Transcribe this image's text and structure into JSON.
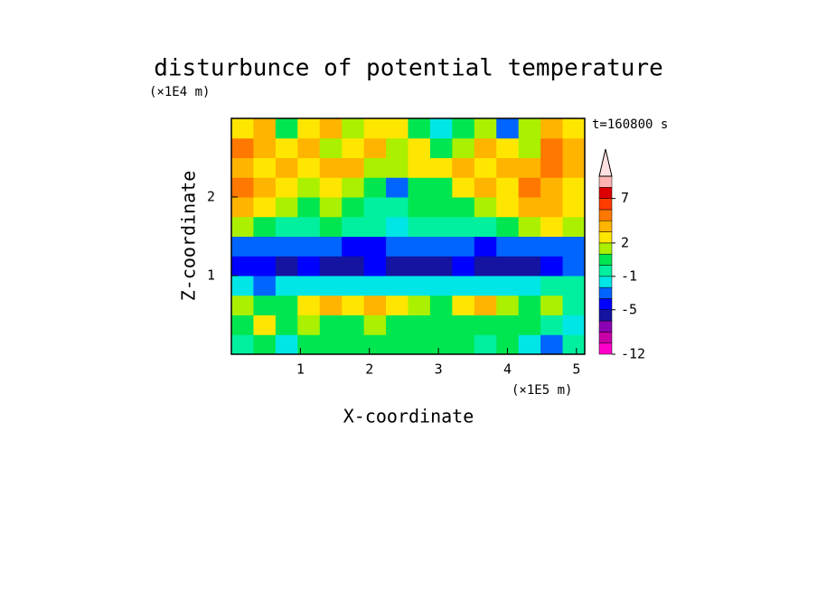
{
  "chart_data": {
    "type": "contour",
    "title": "disturbunce of potential temperature",
    "x_label": "X-coordinate",
    "y_label": "Z-coordinate",
    "x_unit": "(×1E5 m)",
    "y_unit": "(×1E4 m)",
    "annotation": "t=160800 s",
    "xlim": [
      0,
      5.12
    ],
    "ylim": [
      0,
      3
    ],
    "xticks": [
      1,
      2,
      3,
      4,
      5
    ],
    "yticks": [
      1,
      2
    ],
    "x": [
      0.16,
      0.48,
      0.8,
      1.12,
      1.44,
      1.76,
      2.08,
      2.4,
      2.72,
      3.04,
      3.36,
      3.68,
      4.0,
      4.32,
      4.64,
      4.96
    ],
    "y": [
      0.125,
      0.375,
      0.625,
      0.875,
      1.125,
      1.375,
      1.625,
      1.875,
      2.125,
      2.375,
      2.625,
      2.875
    ],
    "z": [
      [
        -1,
        0,
        -2,
        0,
        0,
        0,
        0,
        0,
        0,
        0,
        0,
        -1,
        0,
        -2,
        -3,
        -1
      ],
      [
        0,
        2,
        0,
        1,
        0,
        0,
        1,
        0,
        0,
        0,
        0,
        0,
        0,
        0,
        -1,
        -2
      ],
      [
        1,
        0,
        0,
        2,
        3,
        2,
        3,
        2,
        1,
        0,
        2,
        3,
        1,
        0,
        1,
        -1
      ],
      [
        -2,
        -3,
        -2,
        -2,
        -2,
        -2,
        -2,
        -2,
        -2,
        -2,
        -2,
        -2,
        -2,
        -2,
        -1,
        -1
      ],
      [
        -4,
        -5,
        -6,
        -5,
        -6,
        -6,
        -5,
        -6,
        -6,
        -6,
        -5,
        -6,
        -6,
        -6,
        -4,
        -3
      ],
      [
        -3,
        -3,
        -3,
        -3,
        -3,
        -4,
        -4,
        -3,
        -3,
        -3,
        -3,
        -4,
        -3,
        -3,
        -3,
        -3
      ],
      [
        1,
        0,
        -1,
        -1,
        0,
        -1,
        -1,
        -2,
        -1,
        -1,
        -1,
        -1,
        0,
        1,
        2,
        1
      ],
      [
        3,
        2,
        1,
        0,
        1,
        0,
        -1,
        -1,
        0,
        0,
        0,
        1,
        2,
        3,
        3,
        2
      ],
      [
        4,
        3,
        2,
        1,
        2,
        1,
        0,
        -3,
        0,
        0,
        2,
        3,
        2,
        4,
        3,
        2
      ],
      [
        3,
        2,
        3,
        2,
        3,
        3,
        1,
        1,
        2,
        2,
        3,
        2,
        3,
        3,
        4,
        3
      ],
      [
        4,
        3,
        2,
        3,
        1,
        2,
        3,
        1,
        2,
        0,
        1,
        3,
        2,
        1,
        4,
        3
      ],
      [
        2,
        3,
        0,
        2,
        3,
        1,
        2,
        2,
        0,
        -2,
        0,
        1,
        -3,
        1,
        3,
        2
      ]
    ],
    "levels": [
      -12,
      -10,
      -8,
      -6,
      -5,
      -3,
      -2,
      -1,
      0,
      1,
      2,
      3,
      4,
      5,
      7,
      9,
      11
    ],
    "colors": [
      "#ff00c8",
      "#c800a8",
      "#8c00b4",
      "#1414a0",
      "#0000ff",
      "#0064ff",
      "#00e6e6",
      "#00f0a0",
      "#00e650",
      "#aaf000",
      "#ffe600",
      "#ffb400",
      "#ff7800",
      "#ff3c00",
      "#dc0000",
      "#ffb4b4"
    ],
    "extend_color": "#ffe0e0",
    "colorbar_ticks": [
      -12,
      -5,
      -1,
      2,
      7
    ]
  }
}
